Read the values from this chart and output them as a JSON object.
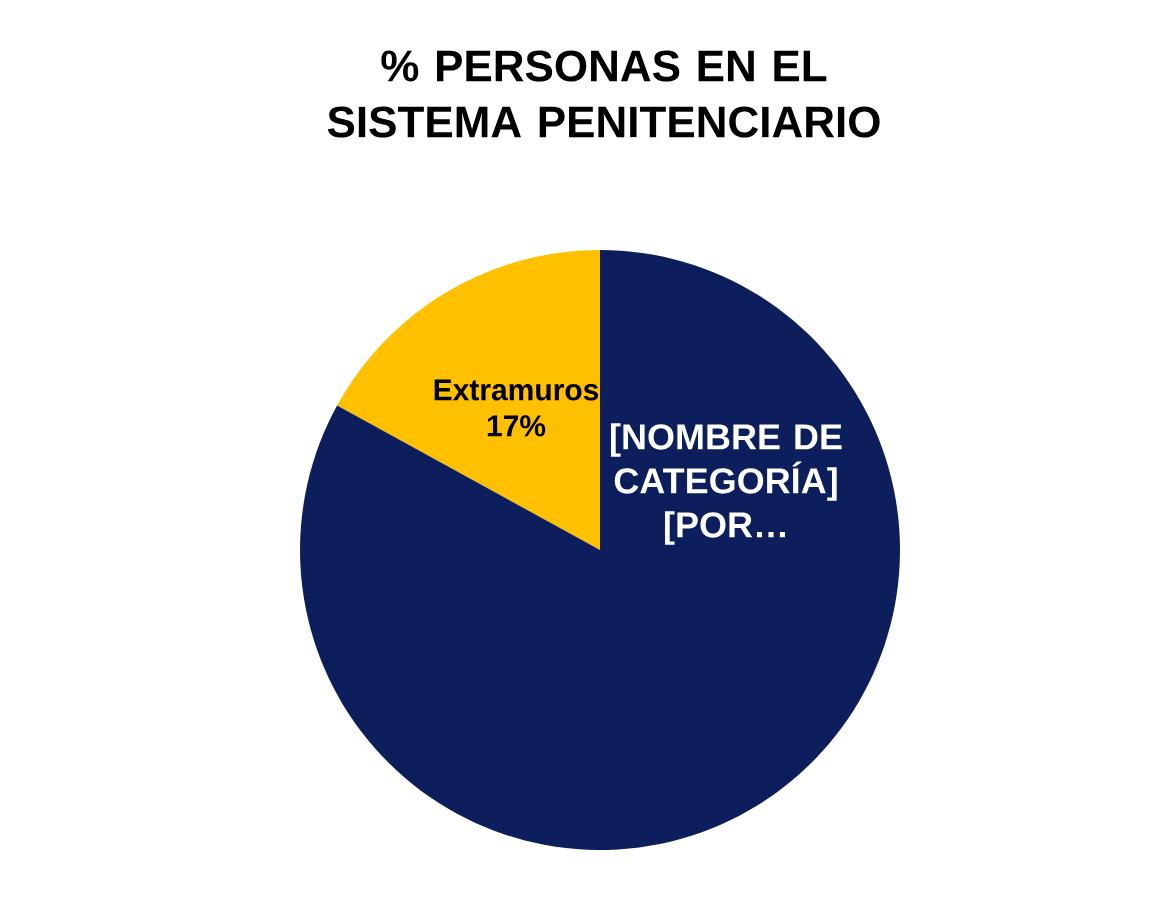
{
  "chart_data": {
    "type": "pie",
    "title": "% PERSONAS EN EL SISTEMA PENITENCIARIO",
    "categories": [
      "Extramuros",
      "[NOMBRE DE CATEGORÍA]"
    ],
    "values": [
      17,
      83
    ],
    "value_labels": [
      "17%",
      "[POR…"
    ],
    "colors": [
      "#ffc000",
      "#0c1f5c"
    ],
    "legend": false
  }
}
